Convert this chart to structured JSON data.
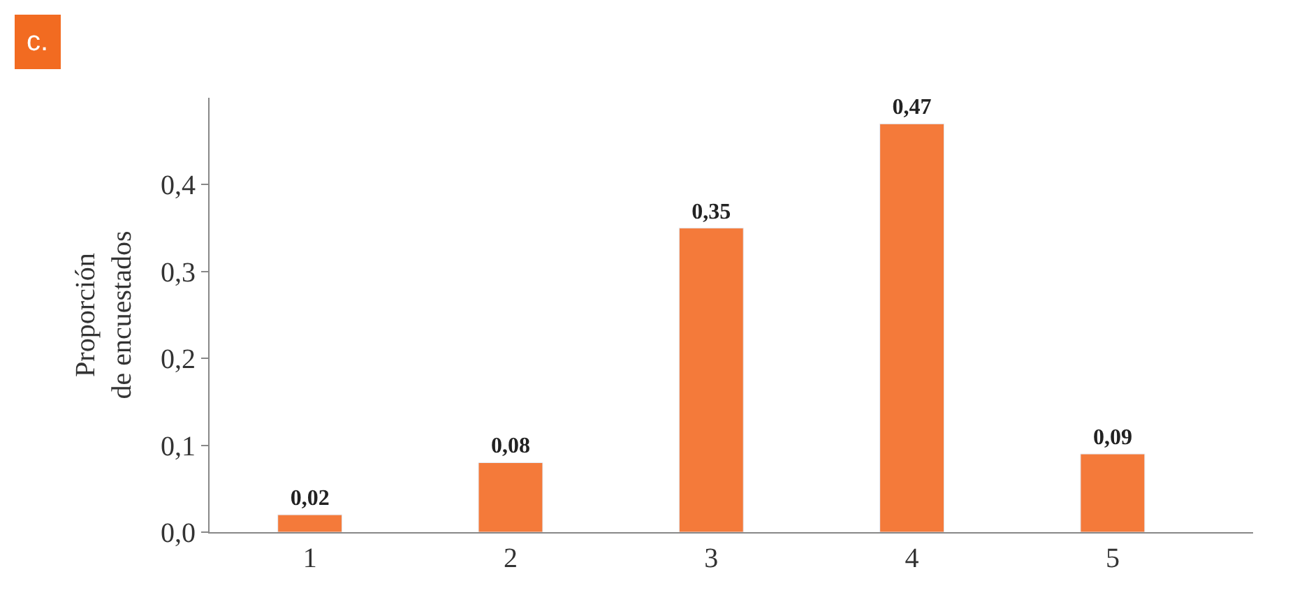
{
  "chart_data": {
    "type": "bar",
    "title": "c.",
    "ylabel": "Proporción\nde encuestados",
    "categories": [
      "1",
      "2",
      "3",
      "4",
      "5"
    ],
    "values": [
      0.02,
      0.08,
      0.35,
      0.47,
      0.09
    ],
    "value_labels": [
      "0,02",
      "0,08",
      "0,35",
      "0,47",
      "0,09"
    ],
    "color": "#f47a3a",
    "ylim": [
      0,
      0.5
    ],
    "yticks": [
      {
        "value": 0,
        "label": "0,0"
      },
      {
        "value": 0.1,
        "label": "0,1"
      },
      {
        "value": 0.2,
        "label": "0,2"
      },
      {
        "value": 0.3,
        "label": "0,3"
      },
      {
        "value": 0.4,
        "label": "0,4"
      }
    ],
    "legend": false
  }
}
